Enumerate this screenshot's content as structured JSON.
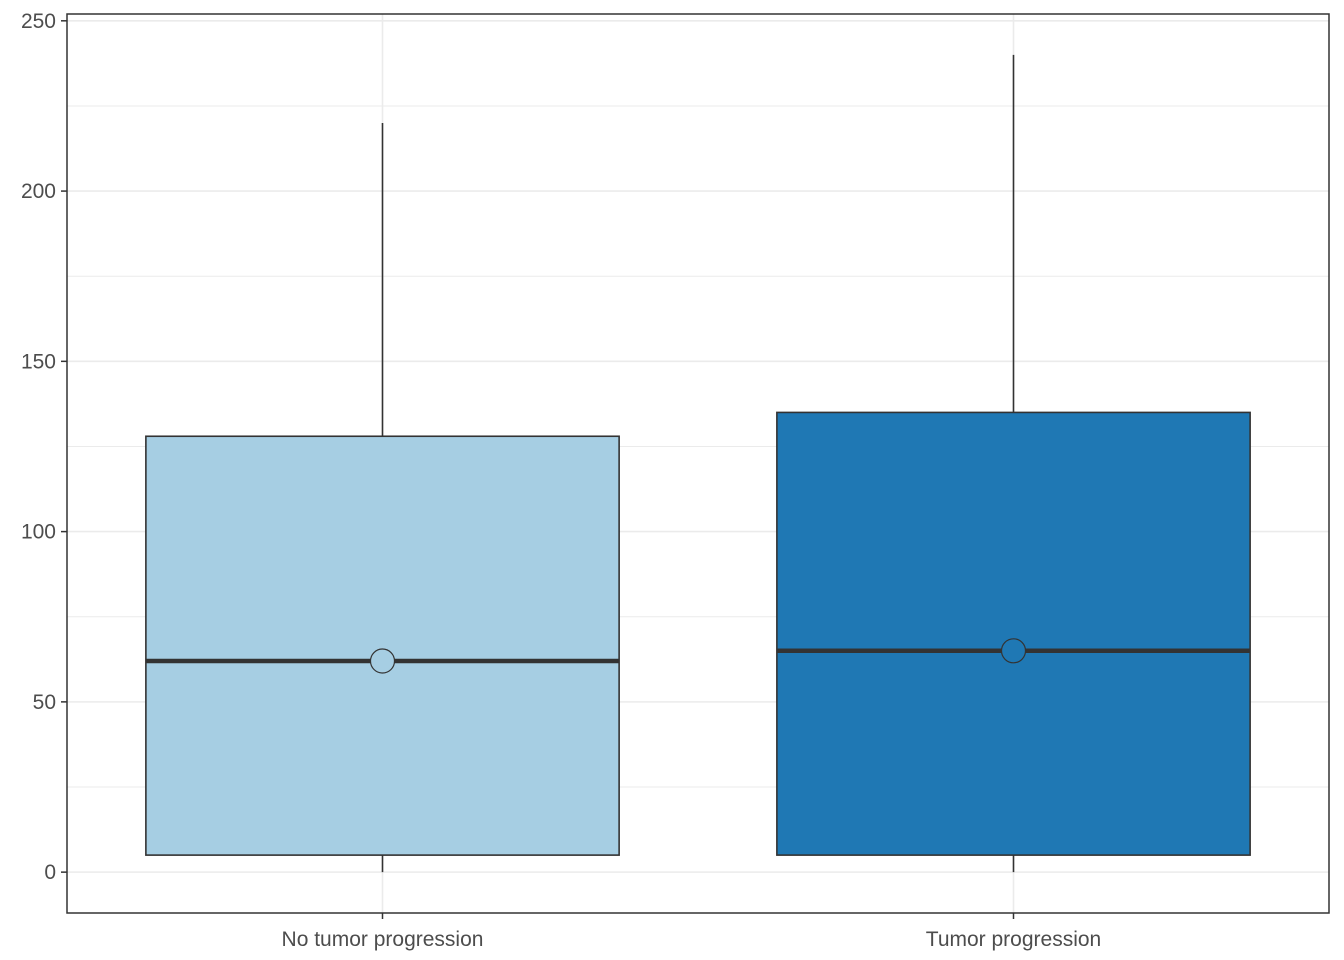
{
  "chart_data": {
    "type": "box",
    "title": "",
    "xlabel": "",
    "ylabel": "",
    "ylim": [
      -12,
      252
    ],
    "y_ticks": [
      0,
      50,
      100,
      150,
      200,
      250
    ],
    "y_tick_labels": [
      "0",
      "50",
      "100",
      "150",
      "200",
      "250"
    ],
    "y_minor_ticks": [
      25,
      75,
      125,
      175,
      225
    ],
    "grid": true,
    "legend": "none",
    "categories": [
      "No tumor progression",
      "Tumor progression"
    ],
    "boxes": [
      {
        "category": "No tumor progression",
        "min": 0,
        "q1": 5,
        "median": 62,
        "q3": 128,
        "max": 220,
        "mean": 62,
        "fill": "#a6cee3"
      },
      {
        "category": "Tumor progression",
        "min": 0,
        "q1": 5,
        "median": 65,
        "q3": 135,
        "max": 240,
        "mean": 65,
        "fill": "#1f78b4"
      }
    ],
    "colors": {
      "box_outline": "#333333",
      "median_line": "#333333",
      "grid": "#ebebeb",
      "panel_border": "#333333"
    }
  }
}
